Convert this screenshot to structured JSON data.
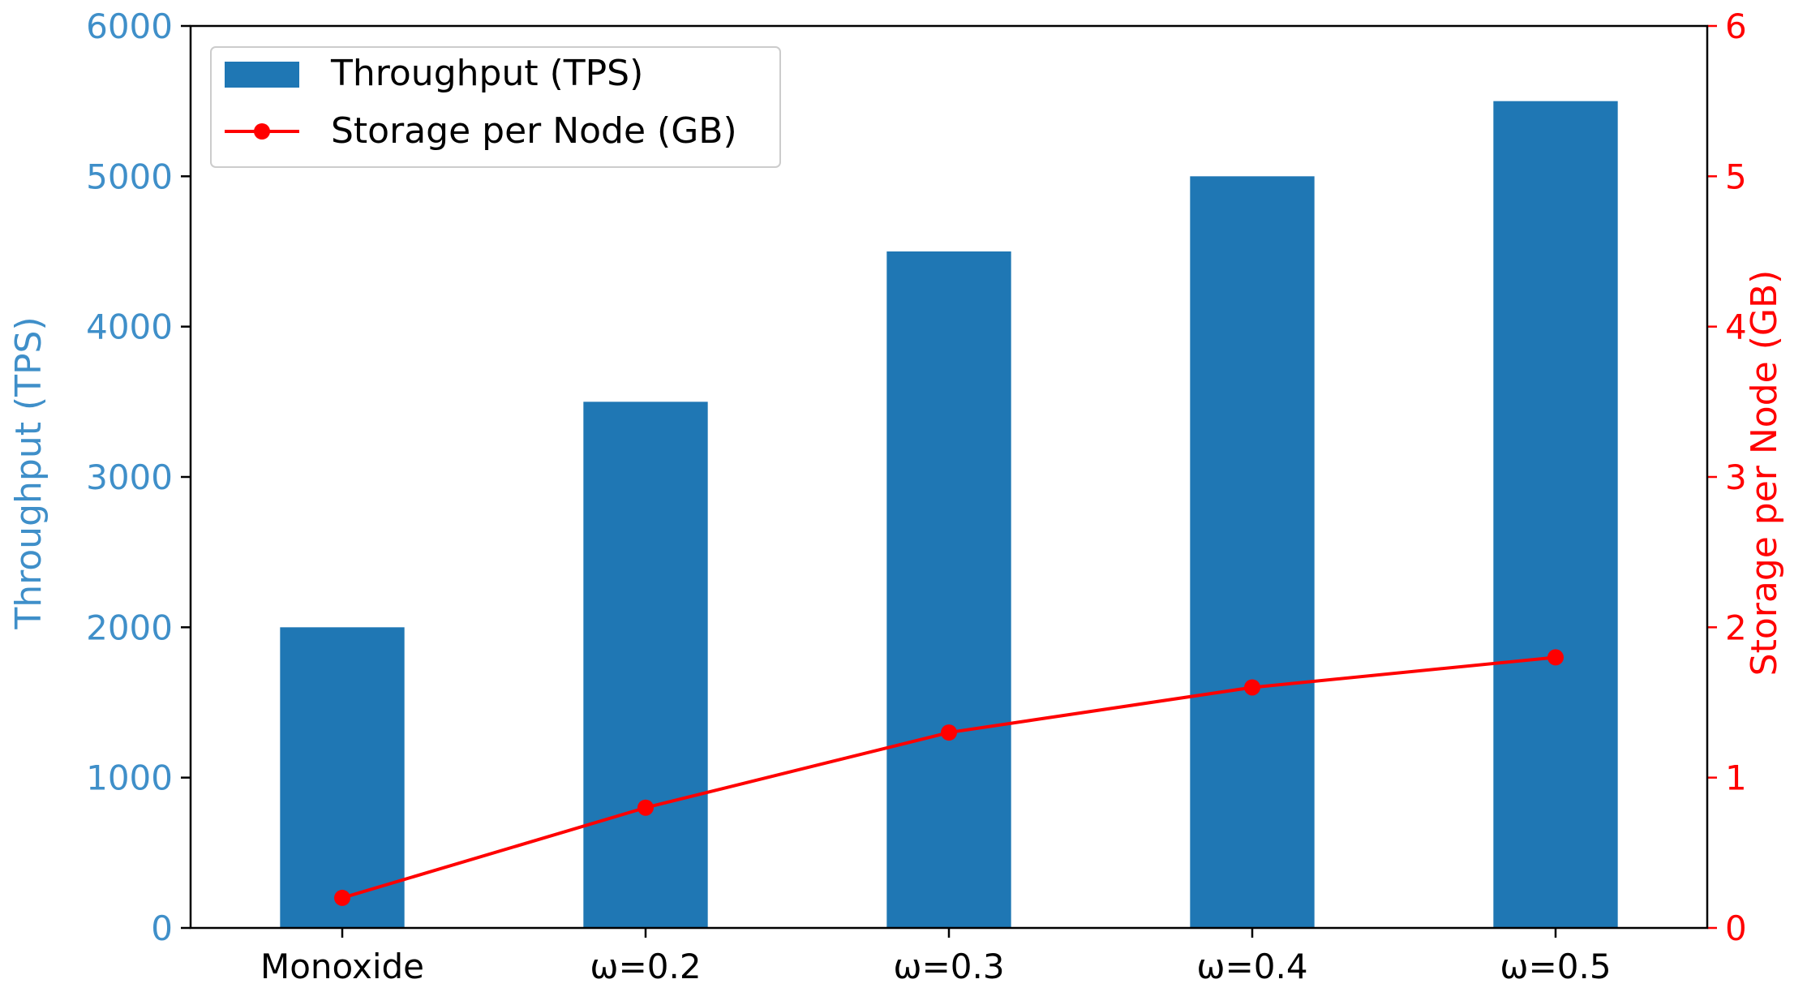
{
  "chart_data": {
    "type": "bar+line",
    "categories": [
      "Monoxide",
      "ω=0.2",
      "ω=0.3",
      "ω=0.4",
      "ω=0.5"
    ],
    "series": [
      {
        "name": "Throughput (TPS)",
        "type": "bar",
        "axis": "left",
        "color": "#1f77b4",
        "values": [
          2000,
          3500,
          4500,
          5000,
          5500
        ]
      },
      {
        "name": "Storage per Node (GB)",
        "type": "line",
        "axis": "right",
        "color": "#ff0000",
        "marker": "circle",
        "values": [
          0.2,
          0.8,
          1.3,
          1.6,
          1.8
        ]
      }
    ],
    "y_left": {
      "label": "Throughput (TPS)",
      "range": [
        0,
        6000
      ],
      "ticks": [
        "0",
        "1000",
        "2000",
        "3000",
        "4000",
        "5000",
        "6000"
      ],
      "color": "#3f8fc9"
    },
    "y_right": {
      "label": "Storage per Node (GB)",
      "range": [
        0,
        6
      ],
      "ticks": [
        "0",
        "1",
        "2",
        "3",
        "4",
        "5",
        "6"
      ],
      "color": "#ff0000"
    },
    "grid": false,
    "legend_placement": "top-left"
  }
}
